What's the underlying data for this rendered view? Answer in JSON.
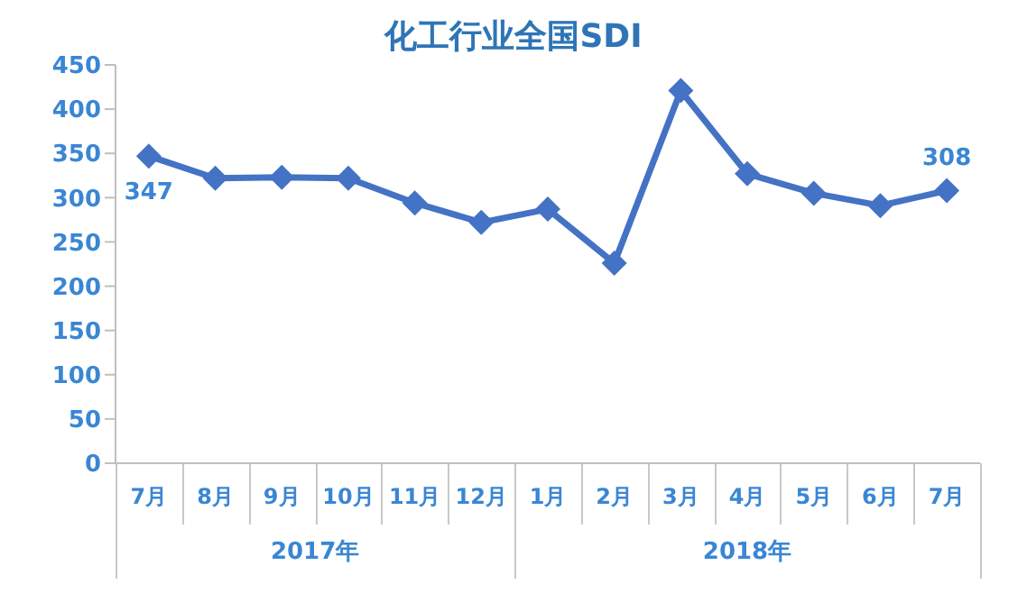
{
  "chart_data": {
    "type": "line",
    "title": "化工行业全国SDI",
    "categories": [
      "7月",
      "8月",
      "9月",
      "10月",
      "11月",
      "12月",
      "1月",
      "2月",
      "3月",
      "4月",
      "5月",
      "6月",
      "7月"
    ],
    "series": [
      {
        "color": "#4472c4",
        "values": [
          347,
          322,
          323,
          322,
          294,
          272,
          287,
          226,
          421,
          327,
          305,
          291,
          308
        ],
        "value_labels": [
          "347",
          null,
          null,
          null,
          null,
          null,
          null,
          null,
          null,
          null,
          null,
          null,
          "308"
        ]
      }
    ],
    "ylim": [
      0,
      450
    ],
    "yticks": [
      0,
      50,
      100,
      150,
      200,
      250,
      300,
      350,
      400,
      450
    ],
    "annotations": [
      "2017年",
      "2018年"
    ],
    "marker": "diamond",
    "line_style": "solid",
    "grid": false,
    "legend": false
  }
}
